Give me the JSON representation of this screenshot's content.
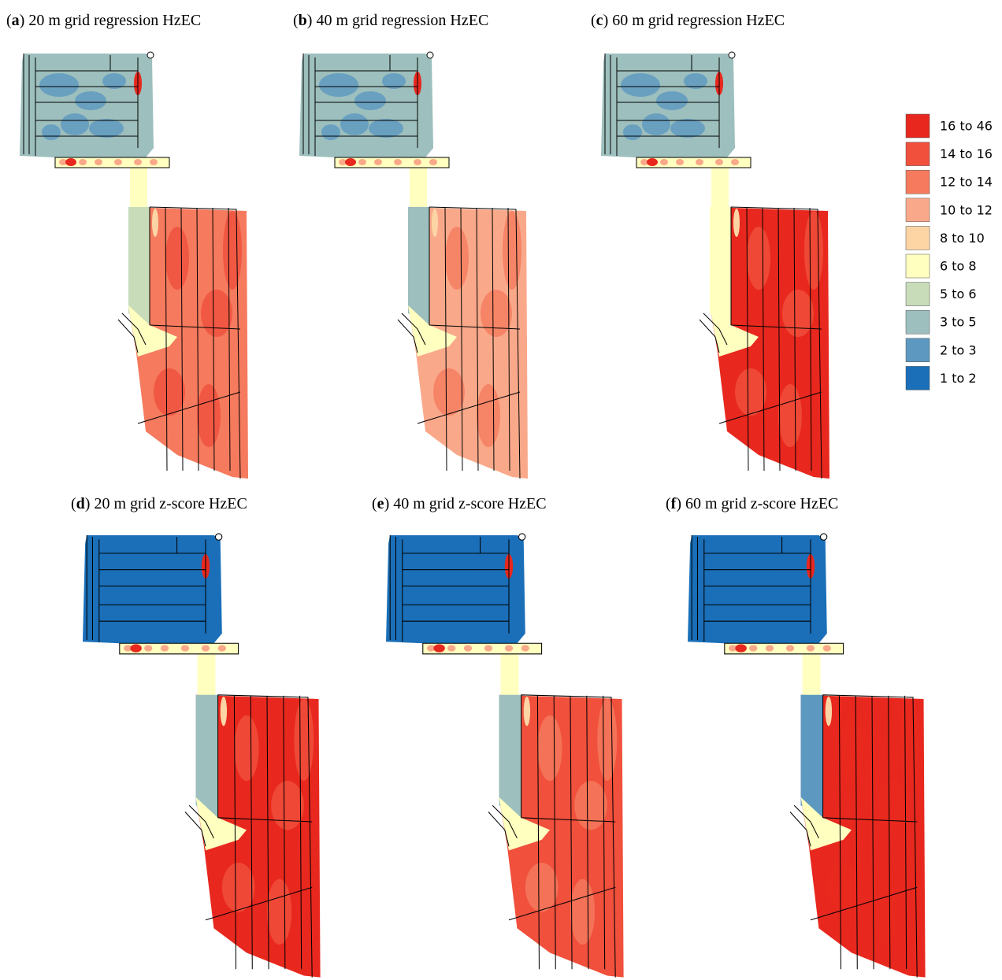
{
  "panels": [
    {
      "open": "(",
      "letter": "a",
      "rest": ") 20 m grid regression HzEC"
    },
    {
      "open": "(",
      "letter": "b",
      "rest": ") 40 m grid regression HzEC"
    },
    {
      "open": "(",
      "letter": "c",
      "rest": ") 60 m grid regression HzEC"
    },
    {
      "open": "(",
      "letter": "d",
      "rest": ") 20 m grid z-score HzEC"
    },
    {
      "open": "(",
      "letter": "e",
      "rest": ") 40 m grid z-score HzEC"
    },
    {
      "open": "(",
      "letter": "f",
      "rest": ") 60 m grid z-score HzEC"
    }
  ],
  "legend": {
    "entries": [
      {
        "label": "16 to 46",
        "color": "#e8281e"
      },
      {
        "label": "14 to 16",
        "color": "#f0503c"
      },
      {
        "label": "12 to 14",
        "color": "#f57a5e"
      },
      {
        "label": "10 to 12",
        "color": "#f9a98a"
      },
      {
        "label": "8 to 10",
        "color": "#fdd5a5"
      },
      {
        "label": "6 to 8",
        "color": "#ffffc0"
      },
      {
        "label": "5 to 6",
        "color": "#c9dcba"
      },
      {
        "label": "3 to 5",
        "color": "#9dbfbd"
      },
      {
        "label": "2 to 3",
        "color": "#5d98c0"
      },
      {
        "label": "1 to 2",
        "color": "#1a6fb8"
      }
    ]
  }
}
